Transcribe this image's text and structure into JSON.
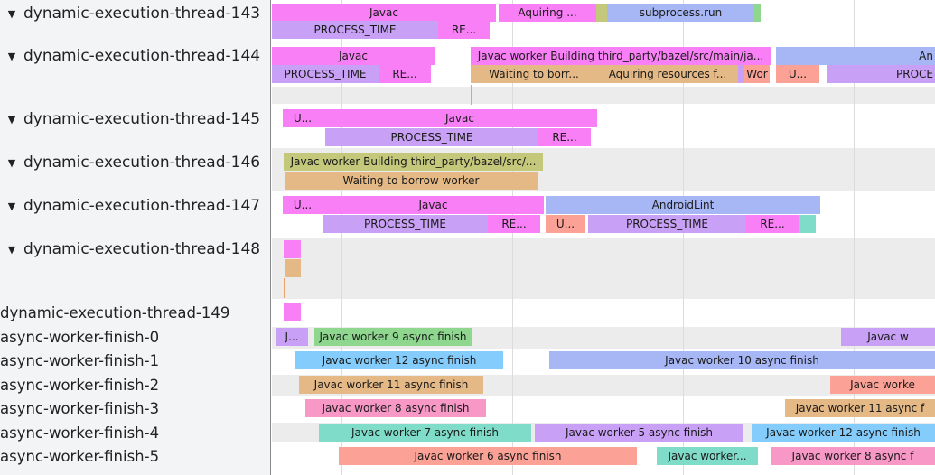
{
  "colors": {
    "pink": "#f87ff5",
    "purple": "#c8a0f5",
    "blue": "#a7b7f5",
    "green": "#8fd68f",
    "olive": "#c4c87a",
    "tan": "#e5b985",
    "salmon": "#fba196",
    "teal": "#7fdcc9",
    "skyblue": "#84ccfb",
    "rose": "#f798c6",
    "lightgrey": "#ececec"
  },
  "lanes": [
    {
      "label": "dynamic-execution-thread-143",
      "expanded": true
    },
    {
      "label": "dynamic-execution-thread-144",
      "expanded": true
    },
    {
      "label": "dynamic-execution-thread-145",
      "expanded": true
    },
    {
      "label": "dynamic-execution-thread-146",
      "expanded": true
    },
    {
      "label": "dynamic-execution-thread-147",
      "expanded": true
    },
    {
      "label": "dynamic-execution-thread-148",
      "expanded": true
    },
    {
      "label": "dynamic-execution-thread-149",
      "expanded": false
    },
    {
      "label": "async-worker-finish-0",
      "expanded": false
    },
    {
      "label": "async-worker-finish-1",
      "expanded": false
    },
    {
      "label": "async-worker-finish-2",
      "expanded": false
    },
    {
      "label": "async-worker-finish-3",
      "expanded": false
    },
    {
      "label": "async-worker-finish-4",
      "expanded": false
    },
    {
      "label": "async-worker-finish-5",
      "expanded": false
    }
  ],
  "expand_glyph": "▼",
  "slices": [
    {
      "label": "Javac",
      "color": "pink"
    },
    {
      "label": "Aquiring ...",
      "color": "pink"
    },
    {
      "label": "",
      "color": "olive"
    },
    {
      "label": "subprocess.run",
      "color": "blue"
    },
    {
      "label": "",
      "color": "green"
    },
    {
      "label": "PROCESS_TIME",
      "color": "purple"
    },
    {
      "label": "RE...",
      "color": "pink"
    },
    {
      "label": "Javac",
      "color": "pink"
    },
    {
      "label": "Javac worker Building third_party/bazel/src/main/ja...",
      "color": "pink"
    },
    {
      "label": "An",
      "color": "blue"
    },
    {
      "label": "PROCESS_TIME",
      "color": "purple"
    },
    {
      "label": "RE...",
      "color": "pink"
    },
    {
      "label": "Waiting to borr...",
      "color": "tan"
    },
    {
      "label": "Aquiring resources f...",
      "color": "tan"
    },
    {
      "label": "",
      "color": "purple"
    },
    {
      "label": "Wor",
      "color": "salmon"
    },
    {
      "label": "U...",
      "color": "salmon"
    },
    {
      "label": "PROCE",
      "color": "purple"
    },
    {
      "label": "U...",
      "color": "pink"
    },
    {
      "label": "Javac",
      "color": "pink"
    },
    {
      "label": "PROCESS_TIME",
      "color": "purple"
    },
    {
      "label": "RE...",
      "color": "pink"
    },
    {
      "label": "Javac worker Building third_party/bazel/src/...",
      "color": "olive"
    },
    {
      "label": "Waiting to borrow worker",
      "color": "tan"
    },
    {
      "label": "U...",
      "color": "pink"
    },
    {
      "label": "Javac",
      "color": "pink"
    },
    {
      "label": "AndroidLint",
      "color": "blue"
    },
    {
      "label": "PROCESS_TIME",
      "color": "purple"
    },
    {
      "label": "RE...",
      "color": "pink"
    },
    {
      "label": "U...",
      "color": "salmon"
    },
    {
      "label": "PROCESS_TIME",
      "color": "purple"
    },
    {
      "label": "RE...",
      "color": "pink"
    },
    {
      "label": "",
      "color": "teal"
    },
    {
      "label": "",
      "color": "pink"
    },
    {
      "label": "",
      "color": "tan"
    },
    {
      "label": "",
      "color": "pink"
    },
    {
      "label": "J...",
      "color": "purple"
    },
    {
      "label": "Javac worker 9 async finish",
      "color": "green"
    },
    {
      "label": "Javac w",
      "color": "purple"
    },
    {
      "label": "Javac worker 12 async finish",
      "color": "skyblue"
    },
    {
      "label": "Javac worker 10 async finish",
      "color": "blue"
    },
    {
      "label": "Javac worker 11 async finish",
      "color": "tan"
    },
    {
      "label": "Javac worke",
      "color": "salmon"
    },
    {
      "label": "Javac worker 8 async finish",
      "color": "rose"
    },
    {
      "label": "Javac worker 11 async f",
      "color": "tan"
    },
    {
      "label": "Javac worker 7 async finish",
      "color": "teal"
    },
    {
      "label": "Javac worker 5 async finish",
      "color": "purple"
    },
    {
      "label": "Javac worker 12 async finish",
      "color": "skyblue"
    },
    {
      "label": "Javac worker 6 async finish",
      "color": "salmon"
    },
    {
      "label": "Javac worker...",
      "color": "teal"
    },
    {
      "label": "Javac worker 8 async f",
      "color": "rose"
    }
  ]
}
